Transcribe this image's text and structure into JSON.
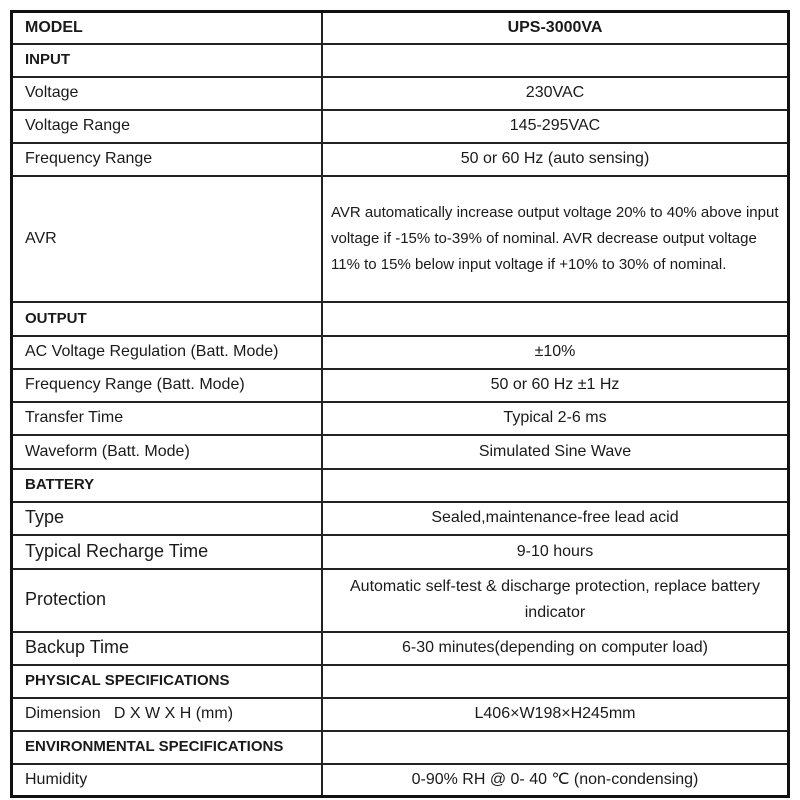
{
  "header": {
    "label": "MODEL",
    "value": "UPS-3000VA"
  },
  "sections": [
    {
      "title": "INPUT",
      "rows": [
        {
          "label": "Voltage",
          "value": "230VAC"
        },
        {
          "label": "Voltage Range",
          "value": "145-295VAC"
        },
        {
          "label": "Frequency Range",
          "value": "50 or 60 Hz (auto sensing)"
        },
        {
          "label": "AVR",
          "value": "AVR automatically increase output voltage 20% to 40% above input voltage if -15% to-39% of nominal. AVR decrease output voltage 11% to 15% below input voltage if +10% to 30% of nominal."
        }
      ]
    },
    {
      "title": "OUTPUT",
      "rows": [
        {
          "label": "AC Voltage Regulation (Batt. Mode)",
          "value": "±10%"
        },
        {
          "label": "Frequency Range (Batt. Mode)",
          "value": "50 or 60 Hz ±1 Hz"
        },
        {
          "label": "Transfer Time",
          "value": "Typical 2-6 ms"
        },
        {
          "label": "Waveform (Batt. Mode)",
          "value": "Simulated Sine Wave"
        }
      ]
    },
    {
      "title": "BATTERY",
      "rows": [
        {
          "label": "Type",
          "value": "Sealed,maintenance-free lead acid"
        },
        {
          "label": "Typical Recharge Time",
          "value": "9-10 hours"
        },
        {
          "label": "Protection",
          "value": "Automatic self-test & discharge protection, replace battery indicator"
        },
        {
          "label": "Backup Time",
          "value": "6-30 minutes(depending on computer load)"
        }
      ]
    },
    {
      "title": "PHYSICAL SPECIFICATIONS",
      "rows": [
        {
          "label": "Dimension   D X W X H (mm)",
          "value": "L406×W198×H245mm"
        }
      ]
    },
    {
      "title": "ENVIRONMENTAL SPECIFICATIONS",
      "rows": [
        {
          "label": "Humidity",
          "value": "0-90% RH @ 0- 40 ℃ (non-condensing)"
        }
      ]
    }
  ]
}
